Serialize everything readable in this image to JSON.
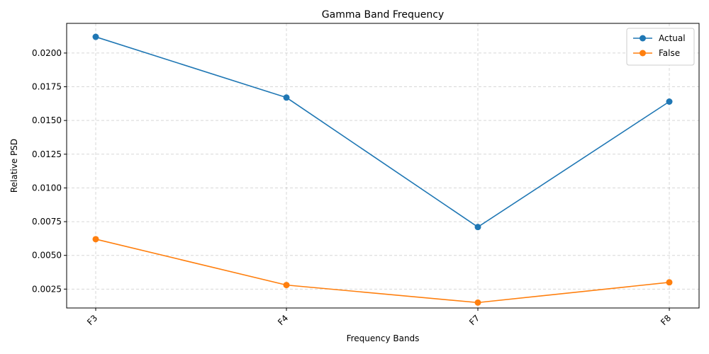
{
  "chart_data": {
    "type": "line",
    "title": "Gamma Band Frequency",
    "xlabel": "Frequency Bands",
    "ylabel": "Relative PSD",
    "categories": [
      "F3",
      "F4",
      "F7",
      "F8"
    ],
    "series": [
      {
        "name": "Actual",
        "color": "#1f77b4",
        "values": [
          0.0212,
          0.0167,
          0.0071,
          0.0164
        ]
      },
      {
        "name": "False",
        "color": "#ff7f0e",
        "values": [
          0.0062,
          0.0028,
          0.0015,
          0.003
        ]
      }
    ],
    "ylim": [
      0.0011,
      0.0222
    ],
    "yticks": [
      "0.0025",
      "0.0050",
      "0.0075",
      "0.0100",
      "0.0125",
      "0.0150",
      "0.0175",
      "0.0200"
    ],
    "grid": true,
    "grid_style": "dashed",
    "legend_position": "top-right",
    "marker": "circle",
    "xtick_rotation": "45"
  }
}
